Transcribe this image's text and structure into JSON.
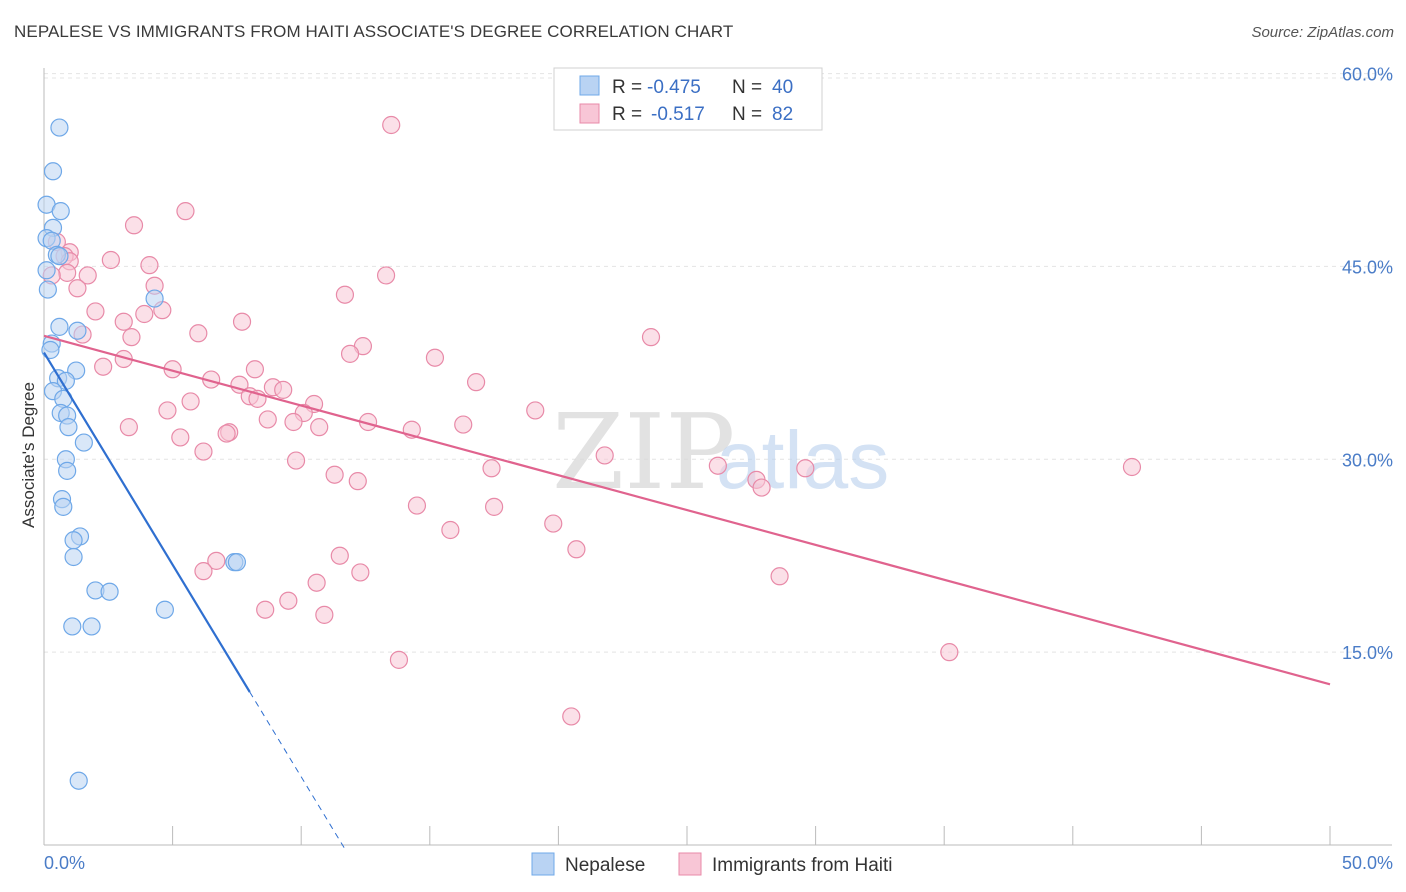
{
  "title": "NEPALESE VS IMMIGRANTS FROM HAITI ASSOCIATE'S DEGREE CORRELATION CHART",
  "source": "Source: ZipAtlas.com",
  "watermark": {
    "zip": "ZIP",
    "atlas": "atlas"
  },
  "chart_data": {
    "type": "scatter",
    "title": "NEPALESE VS IMMIGRANTS FROM HAITI ASSOCIATE'S DEGREE CORRELATION CHART",
    "xlabel": "",
    "ylabel": "Associate's Degree",
    "xlim": [
      0,
      50
    ],
    "ylim": [
      0,
      63
    ],
    "x_tick_labels": [
      "0.0%",
      "50.0%"
    ],
    "y_ticks": [
      15,
      30,
      45,
      60
    ],
    "y_tick_labels": [
      "15.0%",
      "30.0%",
      "45.0%",
      "60.0%"
    ],
    "grid": true,
    "legend": {
      "placement": "top-center",
      "r_label": "R =",
      "n_label": "N =",
      "entries": [
        {
          "name": "Nepalese",
          "r": "-0.475",
          "n": "40"
        },
        {
          "name": "Immigrants from Haiti",
          "r": "-0.517",
          "n": "82"
        }
      ]
    },
    "series": [
      {
        "name": "Nepalese",
        "color": "#6fa8e8",
        "fill": "#b9d3f3",
        "line_color": "#2f6fd0",
        "trend": {
          "x0": 0.0,
          "y0": 38.3,
          "x1": 8.0,
          "y1": 11.9,
          "dash_to_x": 11.7
        },
        "points": [
          [
            0.6,
            55.8
          ],
          [
            0.35,
            52.4
          ],
          [
            0.1,
            49.8
          ],
          [
            0.65,
            49.3
          ],
          [
            0.35,
            48.0
          ],
          [
            0.1,
            47.2
          ],
          [
            0.3,
            47.0
          ],
          [
            0.5,
            45.9
          ],
          [
            0.6,
            45.8
          ],
          [
            0.1,
            44.7
          ],
          [
            0.15,
            43.2
          ],
          [
            4.3,
            42.5
          ],
          [
            0.6,
            40.3
          ],
          [
            1.3,
            40.0
          ],
          [
            0.3,
            39.0
          ],
          [
            0.25,
            38.5
          ],
          [
            1.25,
            36.9
          ],
          [
            0.55,
            36.3
          ],
          [
            0.85,
            36.1
          ],
          [
            0.35,
            35.3
          ],
          [
            0.75,
            34.7
          ],
          [
            0.65,
            33.6
          ],
          [
            0.9,
            33.4
          ],
          [
            0.95,
            32.5
          ],
          [
            1.55,
            31.3
          ],
          [
            0.85,
            30.0
          ],
          [
            0.9,
            29.1
          ],
          [
            0.7,
            26.9
          ],
          [
            0.75,
            26.3
          ],
          [
            1.4,
            24.0
          ],
          [
            1.15,
            23.7
          ],
          [
            1.15,
            22.4
          ],
          [
            7.4,
            22.0
          ],
          [
            7.5,
            22.0
          ],
          [
            2.0,
            19.8
          ],
          [
            2.55,
            19.7
          ],
          [
            4.7,
            18.3
          ],
          [
            1.1,
            17.0
          ],
          [
            1.85,
            17.0
          ],
          [
            1.35,
            5.0
          ]
        ]
      },
      {
        "name": "Immigrants from Haiti",
        "color": "#e88aa8",
        "fill": "#f8c6d6",
        "line_color": "#e0638e",
        "trend": {
          "x0": 0.0,
          "y0": 39.6,
          "x1": 50.0,
          "y1": 12.5
        },
        "points": [
          [
            13.5,
            56.0
          ],
          [
            5.5,
            49.3
          ],
          [
            3.5,
            48.2
          ],
          [
            0.5,
            46.9
          ],
          [
            1.0,
            46.1
          ],
          [
            0.8,
            45.8
          ],
          [
            1.0,
            45.4
          ],
          [
            2.6,
            45.5
          ],
          [
            4.1,
            45.1
          ],
          [
            0.9,
            44.5
          ],
          [
            1.7,
            44.3
          ],
          [
            13.3,
            44.3
          ],
          [
            4.3,
            43.5
          ],
          [
            1.3,
            43.3
          ],
          [
            11.7,
            42.8
          ],
          [
            2.0,
            41.5
          ],
          [
            4.6,
            41.6
          ],
          [
            3.9,
            41.3
          ],
          [
            3.1,
            40.7
          ],
          [
            7.7,
            40.7
          ],
          [
            1.5,
            39.7
          ],
          [
            6.0,
            39.8
          ],
          [
            3.4,
            39.5
          ],
          [
            23.6,
            39.5
          ],
          [
            12.4,
            38.8
          ],
          [
            11.9,
            38.2
          ],
          [
            15.2,
            37.9
          ],
          [
            3.1,
            37.8
          ],
          [
            2.3,
            37.2
          ],
          [
            5.0,
            37.0
          ],
          [
            8.2,
            37.0
          ],
          [
            6.5,
            36.2
          ],
          [
            16.8,
            36.0
          ],
          [
            7.6,
            35.8
          ],
          [
            8.9,
            35.6
          ],
          [
            9.3,
            35.4
          ],
          [
            8.0,
            34.9
          ],
          [
            8.3,
            34.7
          ],
          [
            5.7,
            34.5
          ],
          [
            10.5,
            34.3
          ],
          [
            19.1,
            33.8
          ],
          [
            4.8,
            33.8
          ],
          [
            10.1,
            33.6
          ],
          [
            12.6,
            32.9
          ],
          [
            8.7,
            33.1
          ],
          [
            9.7,
            32.9
          ],
          [
            16.3,
            32.7
          ],
          [
            3.3,
            32.5
          ],
          [
            10.7,
            32.5
          ],
          [
            14.3,
            32.3
          ],
          [
            7.2,
            32.1
          ],
          [
            7.1,
            32.0
          ],
          [
            5.3,
            31.7
          ],
          [
            6.2,
            30.6
          ],
          [
            21.8,
            30.3
          ],
          [
            9.8,
            29.9
          ],
          [
            26.2,
            29.5
          ],
          [
            42.3,
            29.4
          ],
          [
            17.4,
            29.3
          ],
          [
            29.6,
            29.3
          ],
          [
            11.3,
            28.8
          ],
          [
            27.7,
            28.4
          ],
          [
            12.2,
            28.3
          ],
          [
            27.9,
            27.8
          ],
          [
            14.5,
            26.4
          ],
          [
            17.5,
            26.3
          ],
          [
            19.8,
            25.0
          ],
          [
            15.8,
            24.5
          ],
          [
            20.7,
            23.0
          ],
          [
            11.5,
            22.5
          ],
          [
            6.7,
            22.1
          ],
          [
            6.2,
            21.3
          ],
          [
            12.3,
            21.2
          ],
          [
            28.6,
            20.9
          ],
          [
            10.6,
            20.4
          ],
          [
            9.5,
            19.0
          ],
          [
            8.6,
            18.3
          ],
          [
            10.9,
            17.9
          ],
          [
            35.2,
            15.0
          ],
          [
            13.8,
            14.4
          ],
          [
            20.5,
            10.0
          ],
          [
            0.3,
            44.3
          ]
        ]
      }
    ]
  }
}
